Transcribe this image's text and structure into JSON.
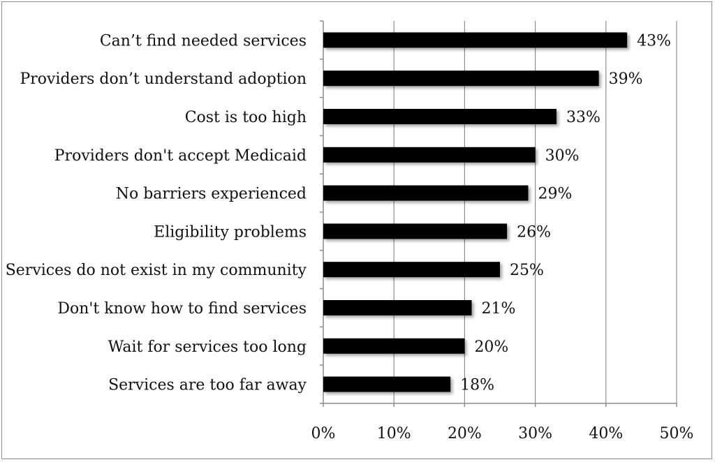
{
  "chart_data": {
    "type": "bar",
    "orientation": "horizontal",
    "categories": [
      "Can’t find needed services",
      "Providers don’t understand adoption",
      "Cost is too high",
      "Providers don't accept Medicaid",
      "No barriers experienced",
      "Eligibility problems",
      "Services do not exist in my community",
      "Don't know how to find services",
      "Wait for services too long",
      "Services are too far away"
    ],
    "values": [
      43,
      39,
      33,
      30,
      29,
      26,
      25,
      21,
      20,
      18
    ],
    "value_labels": [
      "43%",
      "39%",
      "33%",
      "30%",
      "29%",
      "26%",
      "25%",
      "21%",
      "20%",
      "18%"
    ],
    "xlim": [
      0,
      50
    ],
    "xticks": [
      0,
      10,
      20,
      30,
      40,
      50
    ],
    "xtick_labels": [
      "0%",
      "10%",
      "20%",
      "30%",
      "40%",
      "50%"
    ],
    "grid": "vertical",
    "legend": "none",
    "bar_color": "#000000",
    "grid_color": "#8c8c8c"
  }
}
